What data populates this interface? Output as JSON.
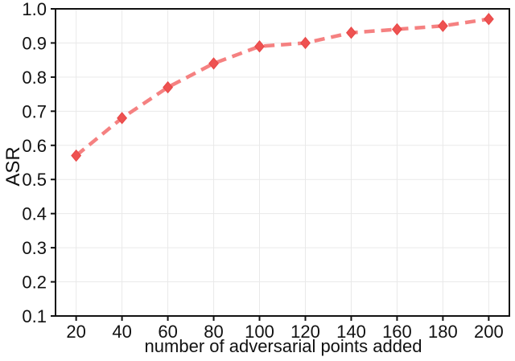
{
  "chart_data": {
    "type": "line",
    "title": "",
    "xlabel": "number of adversarial points added",
    "ylabel": "ASR",
    "x": [
      20,
      40,
      60,
      80,
      100,
      120,
      140,
      160,
      180,
      200
    ],
    "series": [
      {
        "name": "ASR",
        "values": [
          0.57,
          0.68,
          0.77,
          0.84,
          0.89,
          0.9,
          0.93,
          0.94,
          0.95,
          0.97
        ]
      }
    ],
    "xticks": [
      20,
      40,
      60,
      80,
      100,
      120,
      140,
      160,
      180,
      200
    ],
    "xtick_labels": [
      "20",
      "40",
      "60",
      "80",
      "100",
      "120",
      "140",
      "160",
      "180",
      "200"
    ],
    "yticks": [
      0.1,
      0.2,
      0.3,
      0.4,
      0.5,
      0.6,
      0.7,
      0.8,
      0.9,
      1.0
    ],
    "ytick_labels": [
      "0.1",
      "0.2",
      "0.3",
      "0.4",
      "0.5",
      "0.6",
      "0.7",
      "0.8",
      "0.9",
      "1.0"
    ],
    "xlim": [
      11,
      209
    ],
    "ylim": [
      0.1,
      1.0
    ],
    "grid": true,
    "legend": "none",
    "colors": {
      "line": "#f58181",
      "marker_fill": "#ee5251",
      "marker_edge": "#e84747",
      "grid": "#e9e9e9",
      "spine": "#111111",
      "text": "#111111",
      "background": "#ffffff"
    },
    "line_style": {
      "dash": [
        13,
        8
      ],
      "width": 4.5
    },
    "marker_style": {
      "shape": "diamond",
      "half_width": 5.8,
      "half_height": 6.9
    }
  }
}
